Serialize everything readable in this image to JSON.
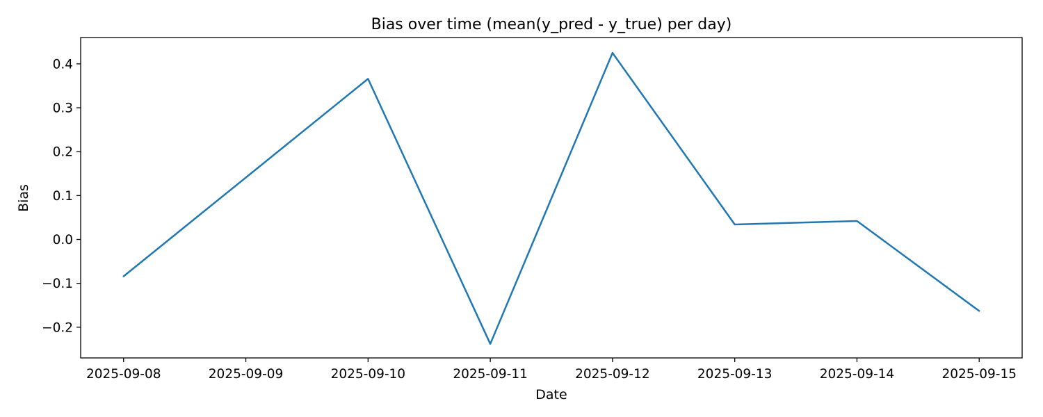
{
  "chart_data": {
    "type": "line",
    "title": "Bias over time (mean(y_pred - y_true) per day)",
    "xlabel": "Date",
    "ylabel": "Bias",
    "x": [
      "2025-09-08",
      "2025-09-10",
      "2025-09-11",
      "2025-09-12",
      "2025-09-13",
      "2025-09-14",
      "2025-09-15"
    ],
    "y": [
      -0.084,
      0.366,
      -0.238,
      0.425,
      0.034,
      0.042,
      -0.163
    ],
    "x_ticks": [
      "2025-09-08",
      "2025-09-09",
      "2025-09-10",
      "2025-09-11",
      "2025-09-12",
      "2025-09-13",
      "2025-09-14",
      "2025-09-15"
    ],
    "y_ticks": [
      -0.2,
      -0.1,
      0.0,
      0.1,
      0.2,
      0.3,
      0.4
    ],
    "y_tick_labels": [
      "−0.2",
      "−0.1",
      "0.0",
      "0.1",
      "0.2",
      "0.3",
      "0.4"
    ],
    "ylim": [
      -0.27,
      0.46
    ],
    "xlim": [
      "2025-09-07T15:34",
      "2025-09-15T08:26"
    ],
    "grid": false,
    "line_color": "#1f77b4"
  }
}
